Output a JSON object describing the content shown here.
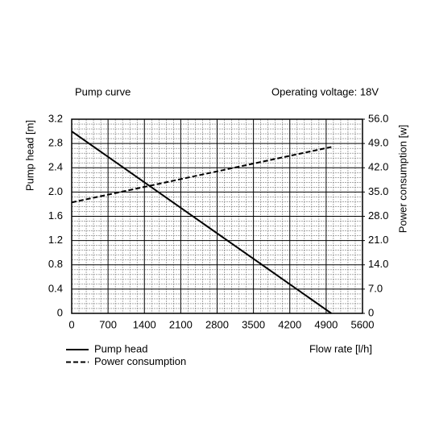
{
  "chart_data": {
    "type": "line",
    "title": "Pump curve",
    "subtitle": "Operating voltage: 18V",
    "x_label": "Flow rate [l/h]",
    "y_label": "Pump head [m]",
    "y2_label": "Power consumption [w]",
    "x": [
      0,
      5000
    ],
    "series": [
      {
        "name": "Pump head",
        "color": "#000000",
        "dash": "solid",
        "values": [
          3.0,
          0
        ]
      },
      {
        "name": "Power consumption",
        "color": "#000000",
        "dash": "dashed",
        "axis": "y2",
        "values": [
          32,
          48
        ]
      }
    ],
    "xlim": [
      0,
      5600
    ],
    "xticks": [
      0,
      700,
      1400,
      2100,
      2800,
      3500,
      4200,
      4900,
      5600
    ],
    "ylim": [
      0,
      3.2
    ],
    "yticks": [
      0,
      0.4,
      0.8,
      1.2,
      1.6,
      {
        "value": 2,
        "label": "2.0"
      },
      2.4,
      2.8,
      3.2
    ],
    "y2lim": [
      0,
      56
    ],
    "y2ticks": [
      0,
      {
        "value": 7,
        "label": "7.0"
      },
      {
        "value": 14,
        "label": "14.0"
      },
      {
        "value": 21,
        "label": "21.0"
      },
      {
        "value": 28,
        "label": "28.0"
      },
      {
        "value": 35,
        "label": "35.0"
      },
      {
        "value": 42,
        "label": "42.0"
      },
      {
        "value": 49,
        "label": "49.0"
      },
      {
        "value": 56,
        "label": "56.0"
      }
    ],
    "grid": true,
    "legend": "bottom-left"
  }
}
